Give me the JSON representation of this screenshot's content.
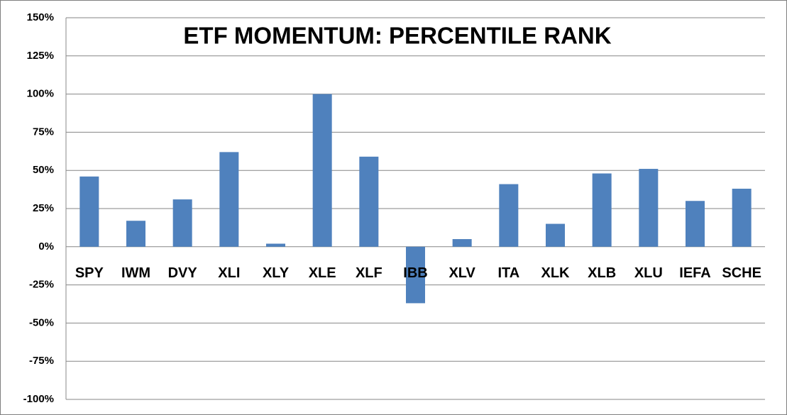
{
  "chart_data": {
    "type": "bar",
    "title": "ETF MOMENTUM: PERCENTILE RANK",
    "categories": [
      "SPY",
      "IWM",
      "DVY",
      "XLI",
      "XLY",
      "XLE",
      "XLF",
      "IBB",
      "XLV",
      "ITA",
      "XLK",
      "XLB",
      "XLU",
      "IEFA",
      "SCHE"
    ],
    "values": [
      46,
      17,
      31,
      62,
      2,
      100,
      59,
      -37,
      5,
      41,
      15,
      48,
      51,
      30,
      38
    ],
    "color": "#4f81bd",
    "ylim": [
      -100,
      150
    ],
    "yticks": [
      {
        "value": -100,
        "label": "-100%"
      },
      {
        "value": -75,
        "label": "-75%"
      },
      {
        "value": -50,
        "label": "-50%"
      },
      {
        "value": -25,
        "label": "-25%"
      },
      {
        "value": 0,
        "label": "0%"
      },
      {
        "value": 25,
        "label": "25%"
      },
      {
        "value": 50,
        "label": "50%"
      },
      {
        "value": 75,
        "label": "75%"
      },
      {
        "value": 100,
        "label": "100%"
      },
      {
        "value": 125,
        "label": "125%"
      },
      {
        "value": 150,
        "label": "150%"
      }
    ],
    "grid": true
  }
}
